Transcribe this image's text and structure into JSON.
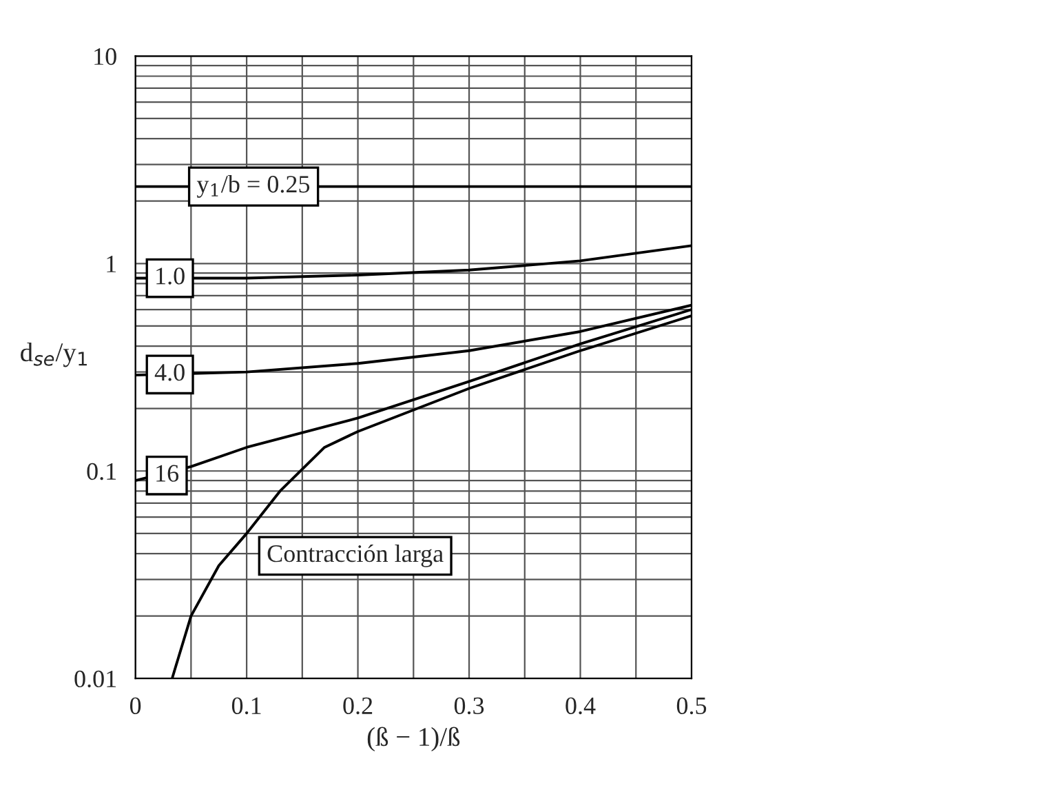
{
  "chart_data": {
    "type": "line",
    "xlabel": "(ß − 1)/ß",
    "ylabel": "d$_{se}$/y$_{1}$",
    "log": "y",
    "grid": true,
    "legend": false,
    "marker": "none",
    "line_style": "solid",
    "xlim": [
      0,
      0.5
    ],
    "ylim": [
      0.01,
      10
    ],
    "xticks": [
      0,
      {
        "value": 0.05,
        "label": null
      },
      0.1,
      {
        "value": 0.15,
        "label": null
      },
      0.2,
      {
        "value": 0.25,
        "label": null
      },
      0.3,
      {
        "value": 0.35,
        "label": null
      },
      0.4,
      {
        "value": 0.45,
        "label": null
      },
      0.5
    ],
    "yticks": [
      {
        "value": 0.01,
        "label": "0.01"
      },
      {
        "value": 0.02,
        "label": null
      },
      {
        "value": 0.03,
        "label": null
      },
      {
        "value": 0.04,
        "label": null
      },
      {
        "value": 0.05,
        "label": null
      },
      {
        "value": 0.06,
        "label": null
      },
      {
        "value": 0.07,
        "label": null
      },
      {
        "value": 0.08,
        "label": null
      },
      {
        "value": 0.09,
        "label": null
      },
      {
        "value": 0.1,
        "label": "0.1"
      },
      {
        "value": 0.2,
        "label": null
      },
      {
        "value": 0.3,
        "label": null
      },
      {
        "value": 0.4,
        "label": null
      },
      {
        "value": 0.5,
        "label": null
      },
      {
        "value": 0.6,
        "label": null
      },
      {
        "value": 0.7,
        "label": null
      },
      {
        "value": 0.8,
        "label": null
      },
      {
        "value": 0.9,
        "label": null
      },
      {
        "value": 1,
        "label": "1"
      },
      {
        "value": 2,
        "label": null
      },
      {
        "value": 3,
        "label": null
      },
      {
        "value": 4,
        "label": null
      },
      {
        "value": 5,
        "label": null
      },
      {
        "value": 6,
        "label": null
      },
      {
        "value": 7,
        "label": null
      },
      {
        "value": 8,
        "label": null
      },
      {
        "value": 9,
        "label": null
      },
      {
        "value": 10,
        "label": "10"
      }
    ],
    "series": [
      {
        "name": "y$_{1}$/b = 0.25",
        "color": "#000000",
        "x": [
          0,
          0.5
        ],
        "values": [
          2.35,
          2.35
        ]
      },
      {
        "name": "1.0",
        "color": "#000000",
        "x": [
          0,
          0.1,
          0.2,
          0.3,
          0.4,
          0.5
        ],
        "values": [
          0.85,
          0.85,
          0.88,
          0.93,
          1.03,
          1.22
        ]
      },
      {
        "name": "4.0",
        "color": "#000000",
        "x": [
          0,
          0.1,
          0.2,
          0.3,
          0.4,
          0.5
        ],
        "values": [
          0.29,
          0.3,
          0.33,
          0.38,
          0.47,
          0.63
        ]
      },
      {
        "name": "16",
        "color": "#000000",
        "x": [
          0,
          0.05,
          0.1,
          0.2,
          0.3,
          0.4,
          0.5
        ],
        "values": [
          0.09,
          0.105,
          0.13,
          0.18,
          0.27,
          0.41,
          0.6
        ]
      },
      {
        "name": "Contracción larga",
        "color": "#000000",
        "x": [
          0.033,
          0.05,
          0.075,
          0.1,
          0.13,
          0.17,
          0.2,
          0.3,
          0.4,
          0.5
        ],
        "values": [
          0.01,
          0.02,
          0.035,
          0.05,
          0.08,
          0.13,
          0.155,
          0.25,
          0.38,
          0.56
        ]
      }
    ]
  }
}
